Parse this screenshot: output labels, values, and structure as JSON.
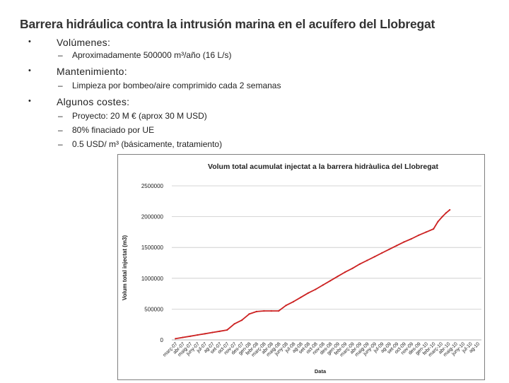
{
  "slide": {
    "title": "Barrera hidráulica contra la intrusión marina en el acuífero del Llobregat",
    "bullets": [
      {
        "label": "Volúmenes:",
        "sub": [
          "Aproximadamente 500000 m³/año (16 L/s)"
        ]
      },
      {
        "label": "Mantenimiento:",
        "sub": [
          "Limpieza por bombeo/aire comprimido cada 2 semanas"
        ]
      },
      {
        "label": "Algunos costes:",
        "sub": [
          "Proyecto: 20 M € (aprox 30 M USD)",
          "80% finaciado por UE",
          "0.5 USD/ m³ (básicamente, tratamiento)"
        ]
      }
    ],
    "bullet_glyph": "•",
    "dash_glyph": "–"
  },
  "chart_data": {
    "type": "line",
    "title": "Volum total acumulat injectat a la barrera hidràulica del Llobregat",
    "xlabel": "Data",
    "ylabel": "Volum total injectat (m3)",
    "ylim": [
      0,
      2500000
    ],
    "yticks": [
      "0",
      "500000",
      "1000000",
      "1500000",
      "2000000",
      "2500000"
    ],
    "ytick_values": [
      0,
      500000,
      1000000,
      1500000,
      2000000,
      2500000
    ],
    "grid": true,
    "legend": "none",
    "line_color": "#cc2222",
    "categories": [
      "març-07",
      "abr-07",
      "maig-07",
      "juny-07",
      "jul-07",
      "ag-07",
      "set-07",
      "oct-07",
      "nov-07",
      "des-07",
      "gen-08",
      "febr-08",
      "març-08",
      "abr-08",
      "maig-08",
      "juny-08",
      "jul-08",
      "ag-08",
      "set-08",
      "oct-08",
      "nov-08",
      "des-08",
      "gen-09",
      "febr-09",
      "març-09",
      "abr-09",
      "maig-09",
      "juny-09",
      "jul-09",
      "ag-09",
      "set-09",
      "oct-09",
      "nov-09",
      "des-09",
      "gen-10",
      "febr-10",
      "març-10",
      "abr-10",
      "maig-10",
      "juny-10",
      "jul-10",
      "ag-10"
    ],
    "series": [
      {
        "x": [
          0,
          1,
          2,
          3,
          4,
          5,
          6,
          7,
          8,
          9,
          10,
          11,
          12,
          13,
          14,
          15,
          16,
          17,
          18,
          19,
          20,
          21,
          22,
          23,
          24,
          25,
          26,
          27,
          28,
          29,
          30,
          31,
          32,
          33,
          34,
          35,
          35.6,
          36.2,
          36.7,
          37.2
        ],
        "values": [
          20000,
          40000,
          60000,
          80000,
          100000,
          120000,
          140000,
          160000,
          260000,
          320000,
          420000,
          460000,
          470000,
          470000,
          470000,
          560000,
          620000,
          690000,
          760000,
          820000,
          890000,
          960000,
          1030000,
          1100000,
          1160000,
          1230000,
          1290000,
          1350000,
          1410000,
          1470000,
          1530000,
          1590000,
          1640000,
          1700000,
          1750000,
          1800000,
          1920000,
          2000000,
          2060000,
          2110000
        ]
      }
    ]
  }
}
